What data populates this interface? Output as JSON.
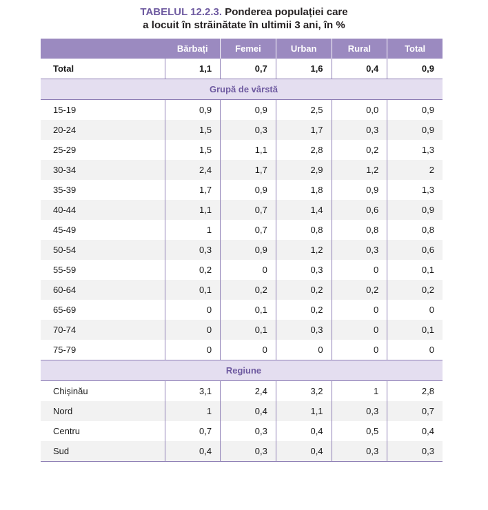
{
  "title": {
    "label": "TABELUL 12.2.3.",
    "text_line1": " Ponderea populației care",
    "text_line2": "a locuit în străinătate în ultimii 3 ani, în %"
  },
  "table": {
    "headers": [
      "",
      "Bărbați",
      "Femei",
      "Urban",
      "Rural",
      "Total"
    ],
    "total_row": [
      "Total",
      "1,1",
      "0,7",
      "1,6",
      "0,4",
      "0,9"
    ],
    "section_age": "Grupă de vârstă",
    "age_rows": [
      [
        "15-19",
        "0,9",
        "0,9",
        "2,5",
        "0,0",
        "0,9"
      ],
      [
        "20-24",
        "1,5",
        "0,3",
        "1,7",
        "0,3",
        "0,9"
      ],
      [
        "25-29",
        "1,5",
        "1,1",
        "2,8",
        "0,2",
        "1,3"
      ],
      [
        "30-34",
        "2,4",
        "1,7",
        "2,9",
        "1,2",
        "2"
      ],
      [
        "35-39",
        "1,7",
        "0,9",
        "1,8",
        "0,9",
        "1,3"
      ],
      [
        "40-44",
        "1,1",
        "0,7",
        "1,4",
        "0,6",
        "0,9"
      ],
      [
        "45-49",
        "1",
        "0,7",
        "0,8",
        "0,8",
        "0,8"
      ],
      [
        "50-54",
        "0,3",
        "0,9",
        "1,2",
        "0,3",
        "0,6"
      ],
      [
        "55-59",
        "0,2",
        "0",
        "0,3",
        "0",
        "0,1"
      ],
      [
        "60-64",
        "0,1",
        "0,2",
        "0,2",
        "0,2",
        "0,2"
      ],
      [
        "65-69",
        "0",
        "0,1",
        "0,2",
        "0",
        "0"
      ],
      [
        "70-74",
        "0",
        "0,1",
        "0,3",
        "0",
        "0,1"
      ],
      [
        "75-79",
        "0",
        "0",
        "0",
        "0",
        "0"
      ]
    ],
    "section_region": "Regiune",
    "region_rows": [
      [
        "Chișinău",
        "3,1",
        "2,4",
        "3,2",
        "1",
        "2,8"
      ],
      [
        "Nord",
        "1",
        "0,4",
        "1,1",
        "0,3",
        "0,7"
      ],
      [
        "Centru",
        "0,7",
        "0,3",
        "0,4",
        "0,5",
        "0,4"
      ],
      [
        "Sud",
        "0,4",
        "0,3",
        "0,4",
        "0,3",
        "0,3"
      ]
    ]
  },
  "colors": {
    "header_bg": "#9b8ac0",
    "title_accent": "#6e5aa0",
    "section_bg": "#e4def0",
    "stripe_bg": "#f2f2f2"
  }
}
